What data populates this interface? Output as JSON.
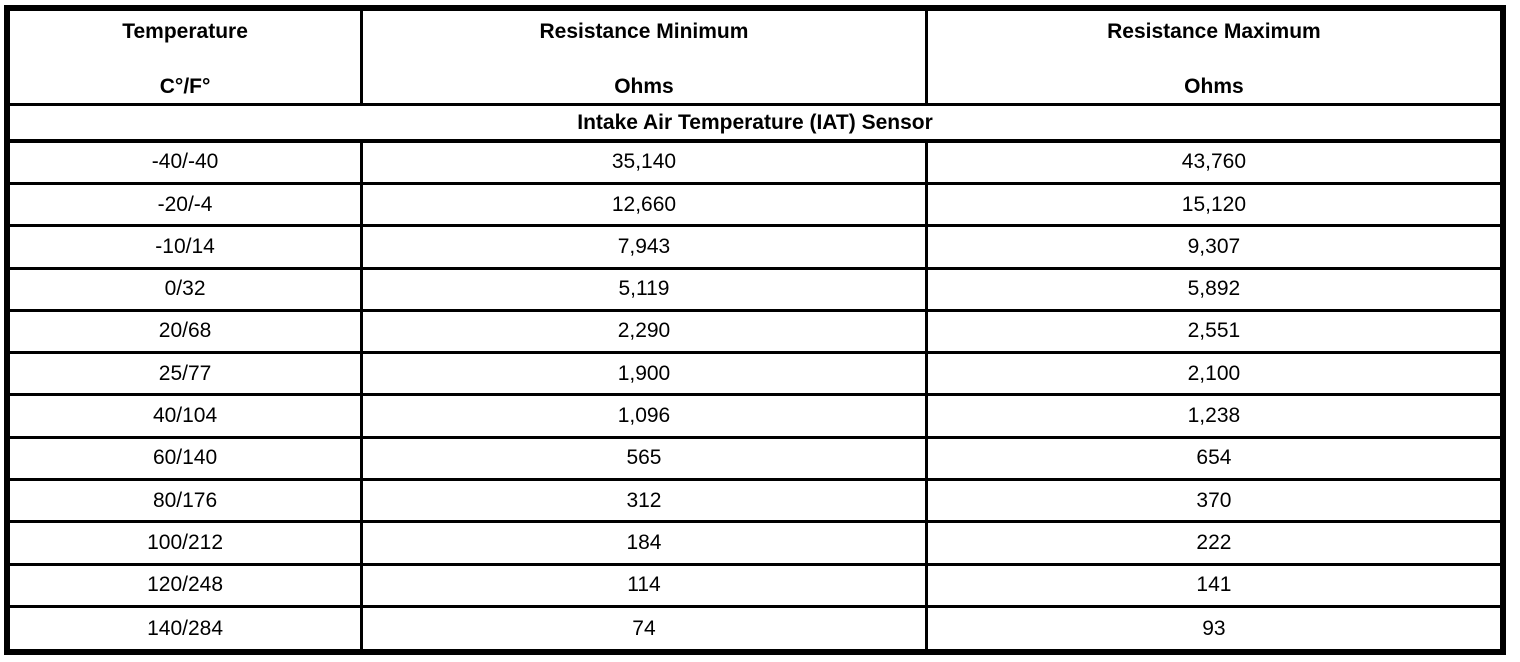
{
  "table": {
    "columns": [
      {
        "title": "Temperature",
        "unit": "C°/F°"
      },
      {
        "title": "Resistance Minimum",
        "unit": "Ohms"
      },
      {
        "title": "Resistance Maximum",
        "unit": "Ohms"
      }
    ],
    "section_title": "Intake Air Temperature (IAT) Sensor",
    "rows": [
      {
        "temp": "-40/-40",
        "min": "35,140",
        "max": "43,760"
      },
      {
        "temp": "-20/-4",
        "min": "12,660",
        "max": "15,120"
      },
      {
        "temp": "-10/14",
        "min": "7,943",
        "max": "9,307"
      },
      {
        "temp": "0/32",
        "min": "5,119",
        "max": "5,892"
      },
      {
        "temp": "20/68",
        "min": "2,290",
        "max": "2,551"
      },
      {
        "temp": "25/77",
        "min": "1,900",
        "max": "2,100"
      },
      {
        "temp": "40/104",
        "min": "1,096",
        "max": "1,238"
      },
      {
        "temp": "60/140",
        "min": "565",
        "max": "654"
      },
      {
        "temp": "80/176",
        "min": "312",
        "max": "370"
      },
      {
        "temp": "100/212",
        "min": "184",
        "max": "222"
      },
      {
        "temp": "120/248",
        "min": "114",
        "max": "141"
      },
      {
        "temp": "140/284",
        "min": "74",
        "max": "93"
      }
    ],
    "border_color": "#000000",
    "background_color": "#ffffff"
  }
}
